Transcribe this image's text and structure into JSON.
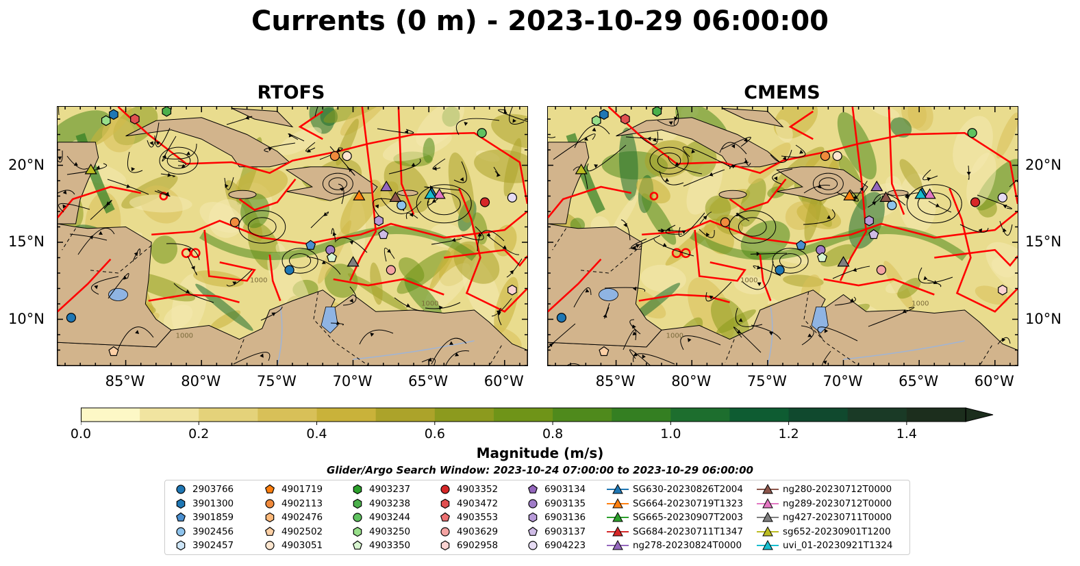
{
  "title": "Currents (0 m) - 2023-10-29 06:00:00",
  "panels": [
    {
      "title": "RTOFS"
    },
    {
      "title": "CMEMS"
    }
  ],
  "axes": {
    "x_ticks": [
      "85°W",
      "80°W",
      "75°W",
      "70°W",
      "65°W",
      "60°W"
    ],
    "x_values": [
      -85,
      -80,
      -75,
      -70,
      -65,
      -60
    ],
    "y_ticks": [
      "20°N",
      "15°N",
      "10°N"
    ],
    "y_values": [
      20,
      15,
      10
    ],
    "lon_range": [
      -89.5,
      -58.5
    ],
    "lat_range": [
      7,
      23.8
    ]
  },
  "colorbar": {
    "label": "Magnitude (m/s)",
    "ticks": [
      "0.0",
      "0.2",
      "0.4",
      "0.6",
      "0.8",
      "1.0",
      "1.2",
      "1.4"
    ],
    "tick_values": [
      0,
      0.2,
      0.4,
      0.6,
      0.8,
      1.0,
      1.2,
      1.4
    ],
    "range": [
      0,
      1.5
    ],
    "colors": [
      "#fdf8c6",
      "#f1e4a0",
      "#e4d27a",
      "#d8c058",
      "#c9b23a",
      "#aca32a",
      "#8c9a1e",
      "#6f9418",
      "#4f8a1c",
      "#347f22",
      "#1d6e2e",
      "#0e5c32",
      "#10492e",
      "#1a3a26",
      "#1c2e1d"
    ],
    "extend": "max"
  },
  "search_window": "Glider/Argo Search Window: 2023-10-24 07:00:00 to 2023-10-29 06:00:00",
  "colors": {
    "land": "#d2b48c",
    "water_inland": "#8fb4e3",
    "boundary": "#ff0000",
    "streamline": "#000000"
  },
  "legend": [
    {
      "label": "2903766",
      "marker": "circle",
      "color": "#1f77b4"
    },
    {
      "label": "3901300",
      "marker": "hexagon",
      "color": "#1f77b4"
    },
    {
      "label": "3901859",
      "marker": "pentagon",
      "color": "#4a8fd0"
    },
    {
      "label": "3902456",
      "marker": "circle",
      "color": "#8ec3ec"
    },
    {
      "label": "3902457",
      "marker": "hexagon",
      "color": "#cde5f7"
    },
    {
      "label": "4901719",
      "marker": "pentagon",
      "color": "#ff7f0e"
    },
    {
      "label": "4902113",
      "marker": "circle",
      "color": "#f08a3c"
    },
    {
      "label": "4902476",
      "marker": "hexagon",
      "color": "#fdb97a"
    },
    {
      "label": "4902502",
      "marker": "pentagon",
      "color": "#fdd0a5"
    },
    {
      "label": "4903051",
      "marker": "circle",
      "color": "#fde6cf"
    },
    {
      "label": "4903237",
      "marker": "hexagon",
      "color": "#2ca02c"
    },
    {
      "label": "4903238",
      "marker": "hexagon",
      "color": "#4bb04b"
    },
    {
      "label": "4903244",
      "marker": "circle",
      "color": "#5fc25f"
    },
    {
      "label": "4903250",
      "marker": "hexagon",
      "color": "#98df8a"
    },
    {
      "label": "4903350",
      "marker": "pentagon",
      "color": "#d8f5d0"
    },
    {
      "label": "4903352",
      "marker": "circle",
      "color": "#d62728"
    },
    {
      "label": "4903472",
      "marker": "hexagon",
      "color": "#e04f50"
    },
    {
      "label": "4903553",
      "marker": "pentagon",
      "color": "#ed7172"
    },
    {
      "label": "4903629",
      "marker": "circle",
      "color": "#f4a3a2"
    },
    {
      "label": "6902958",
      "marker": "hexagon",
      "color": "#fbd3d2"
    },
    {
      "label": "6903134",
      "marker": "pentagon",
      "color": "#9467bd"
    },
    {
      "label": "6903135",
      "marker": "circle",
      "color": "#a07cc8"
    },
    {
      "label": "6903136",
      "marker": "hexagon",
      "color": "#b79ad8"
    },
    {
      "label": "6903137",
      "marker": "pentagon",
      "color": "#cfbce6"
    },
    {
      "label": "6904223",
      "marker": "circle",
      "color": "#e6dbf3"
    },
    {
      "label": "SG630-20230826T2004",
      "marker": "triangle-line",
      "color": "#1f77b4"
    },
    {
      "label": "SG664-20230719T1323",
      "marker": "triangle-line",
      "color": "#ff7f0e"
    },
    {
      "label": "SG665-20230907T2003",
      "marker": "triangle-line",
      "color": "#2ca02c"
    },
    {
      "label": "SG684-20230711T1347",
      "marker": "triangle-line",
      "color": "#d62728"
    },
    {
      "label": "ng278-20230824T0000",
      "marker": "triangle-line",
      "color": "#9467bd"
    },
    {
      "label": "ng280-20230712T0000",
      "marker": "triangle-line",
      "color": "#8c564b"
    },
    {
      "label": "ng289-20230712T0000",
      "marker": "triangle-line",
      "color": "#e377c2"
    },
    {
      "label": "ng427-20230711T0000",
      "marker": "triangle-line",
      "color": "#7f7f7f"
    },
    {
      "label": "sg652-20230901T1200",
      "marker": "triangle-line",
      "color": "#bcbd22"
    },
    {
      "label": "uvi_01-20230921T1324",
      "marker": "triangle-line",
      "color": "#17becf"
    }
  ],
  "map_markers": [
    {
      "label": "2903766",
      "lon": -74.2,
      "lat": 13.2
    },
    {
      "label": "2903766",
      "lon": -88.6,
      "lat": 10.1
    },
    {
      "label": "3901300",
      "lon": -85.8,
      "lat": 23.3
    },
    {
      "label": "3901859",
      "lon": -72.8,
      "lat": 14.8
    },
    {
      "label": "3902456",
      "lon": -66.8,
      "lat": 17.4
    },
    {
      "label": "4902113",
      "lon": -71.2,
      "lat": 20.6
    },
    {
      "label": "4902113",
      "lon": -77.8,
      "lat": 16.3
    },
    {
      "label": "4903051",
      "lon": -70.4,
      "lat": 20.6
    },
    {
      "label": "4903244",
      "lon": -61.5,
      "lat": 22.1
    },
    {
      "label": "4903352",
      "lon": -61.3,
      "lat": 17.6
    },
    {
      "label": "4903629",
      "lon": -67.5,
      "lat": 13.2
    },
    {
      "label": "6903135",
      "lon": -71.5,
      "lat": 14.5
    },
    {
      "label": "6903136",
      "lon": -68.3,
      "lat": 16.4
    },
    {
      "label": "6903137",
      "lon": -68.0,
      "lat": 15.5
    },
    {
      "label": "6904223",
      "lon": -59.5,
      "lat": 17.9
    },
    {
      "label": "6902958",
      "lon": -59.5,
      "lat": 11.9
    },
    {
      "label": "4903472",
      "lon": -84.4,
      "lat": 23.0
    },
    {
      "label": "4903238",
      "lon": -82.3,
      "lat": 23.5
    },
    {
      "label": "4903250",
      "lon": -86.3,
      "lat": 22.9
    },
    {
      "label": "4903350",
      "lon": -71.4,
      "lat": 14.0
    },
    {
      "label": "4902502",
      "lon": -85.8,
      "lat": 7.9
    }
  ],
  "map_gliders": [
    {
      "label": "SG630-20230826T2004",
      "lon": -64.8,
      "lat": 18.2
    },
    {
      "label": "SG664-20230719T1323",
      "lon": -69.6,
      "lat": 18.0
    },
    {
      "label": "ng278-20230824T0000",
      "lon": -67.8,
      "lat": 18.6
    },
    {
      "label": "ng280-20230712T0000",
      "lon": -67.2,
      "lat": 17.9
    },
    {
      "label": "ng289-20230712T0000",
      "lon": -64.3,
      "lat": 18.1
    },
    {
      "label": "ng427-20230711T0000",
      "lon": -70.0,
      "lat": 13.7
    },
    {
      "label": "sg652-20230901T1200",
      "lon": -87.3,
      "lat": 19.7
    },
    {
      "label": "uvi_01-20230921T1324",
      "lon": -64.9,
      "lat": 18.1
    }
  ],
  "contour_labels": [
    "1000",
    "1000",
    "1000"
  ]
}
